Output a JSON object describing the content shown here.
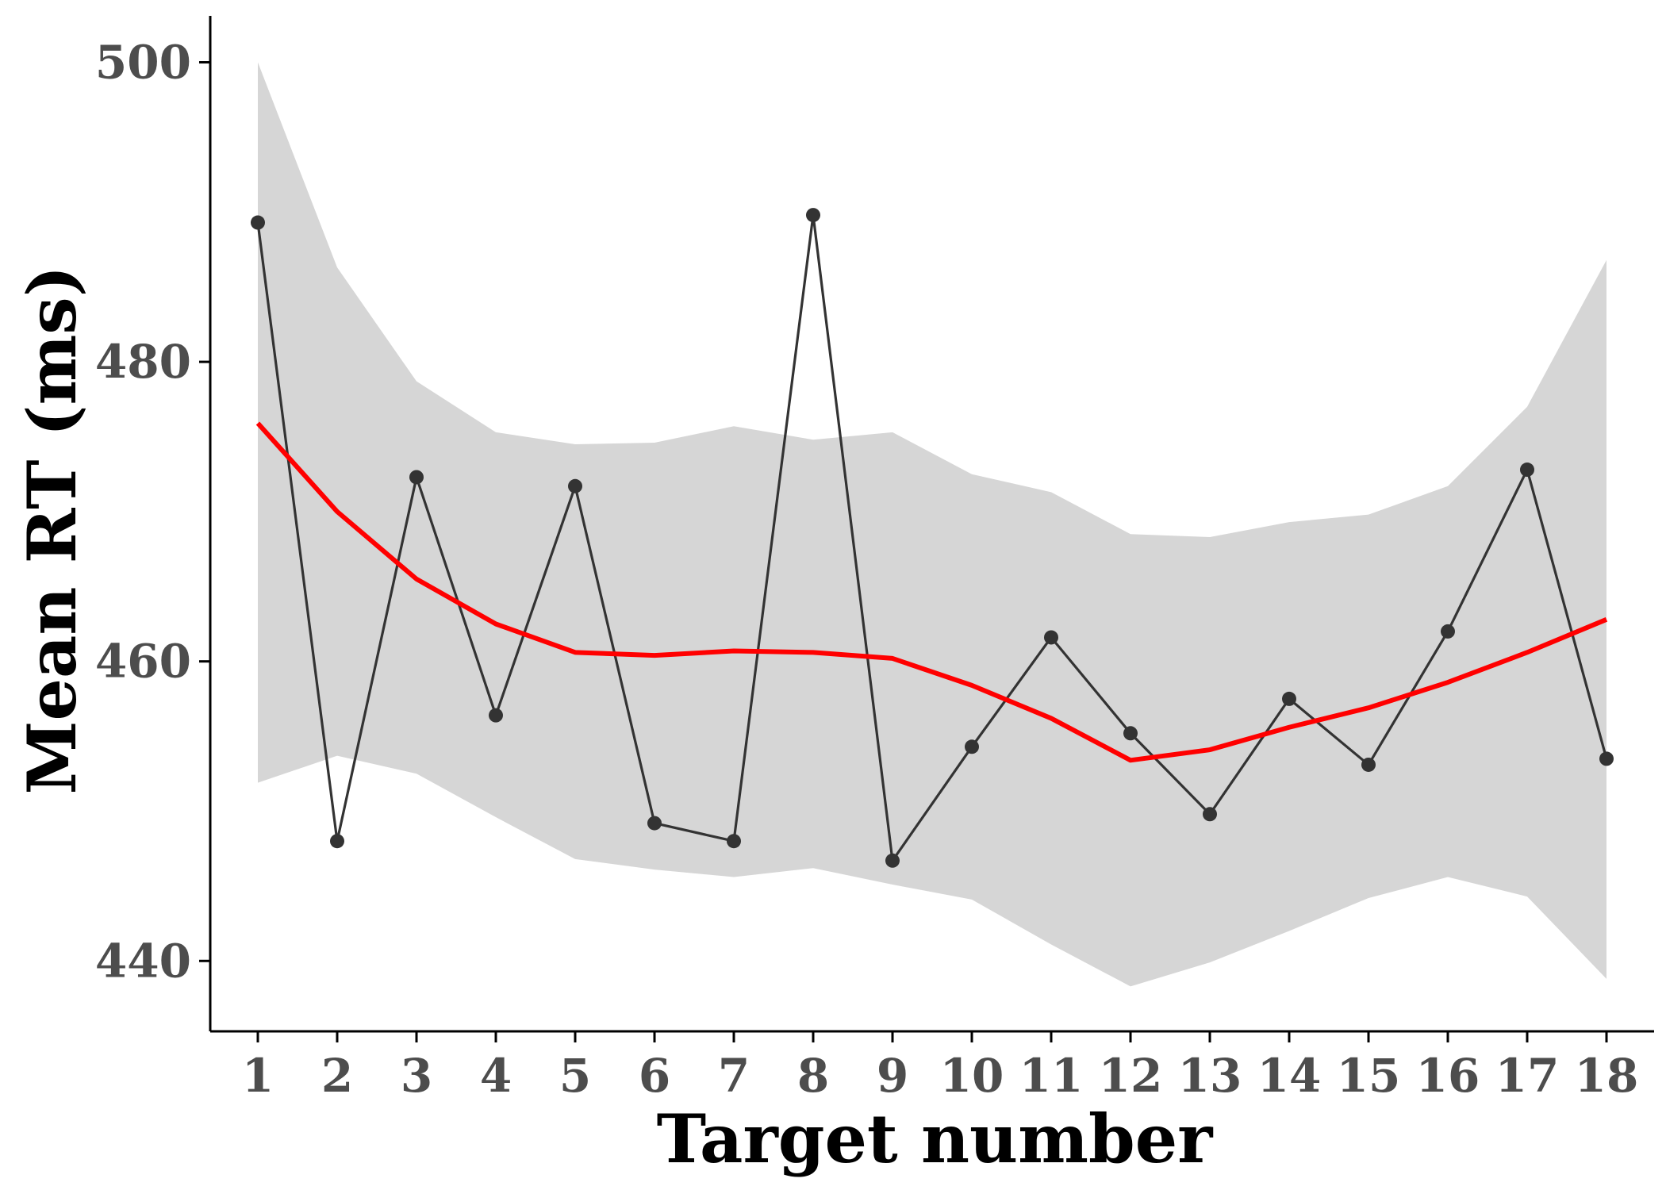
{
  "chart_data": {
    "type": "line",
    "xlabel": "Target number",
    "ylabel": "Mean RT (ms)",
    "x": [
      1,
      2,
      3,
      4,
      5,
      6,
      7,
      8,
      9,
      10,
      11,
      12,
      13,
      14,
      15,
      16,
      17,
      18
    ],
    "x_ticks": [
      "1",
      "2",
      "3",
      "4",
      "5",
      "6",
      "7",
      "8",
      "9",
      "10",
      "11",
      "12",
      "13",
      "14",
      "15",
      "16",
      "17",
      "18"
    ],
    "y_ticks": [
      440,
      460,
      480,
      500
    ],
    "y_tick_labels": [
      "440",
      "460",
      "480",
      "500"
    ],
    "xlim": [
      0.4,
      18.6
    ],
    "ylim": [
      435.3,
      503.1
    ],
    "grid": false,
    "series": [
      {
        "values": [
          489.3,
          448.0,
          472.3,
          456.4,
          471.7,
          449.2,
          448.0,
          489.8,
          446.7,
          454.3,
          461.6,
          455.2,
          449.8,
          457.5,
          453.1,
          462.0,
          472.8,
          453.5
        ],
        "color": "#333333",
        "style": "line+points"
      },
      {
        "values": [
          475.9,
          470.0,
          465.5,
          462.5,
          460.6,
          460.4,
          460.7,
          460.6,
          460.2,
          458.4,
          456.2,
          453.4,
          454.1,
          455.6,
          456.9,
          458.6,
          460.6,
          462.8
        ],
        "color": "#ff0000",
        "style": "smooth-fit"
      }
    ],
    "confidence_band": {
      "upper": [
        500.0,
        486.3,
        478.7,
        475.3,
        474.5,
        474.6,
        475.7,
        474.8,
        475.3,
        472.5,
        471.3,
        468.5,
        468.3,
        469.3,
        469.8,
        471.7,
        477.0,
        486.8
      ],
      "lower": [
        451.9,
        453.7,
        452.5,
        449.6,
        446.8,
        446.1,
        445.6,
        446.2,
        445.1,
        444.1,
        441.1,
        438.3,
        439.9,
        442.0,
        444.2,
        445.6,
        444.3,
        438.8
      ],
      "color": "#d6d6d6"
    },
    "colors": {
      "axis": "#000000",
      "tick_label": "#4d4d4d",
      "band": "#d6d6d6",
      "fit": "#ff0000",
      "series": "#333333"
    }
  }
}
